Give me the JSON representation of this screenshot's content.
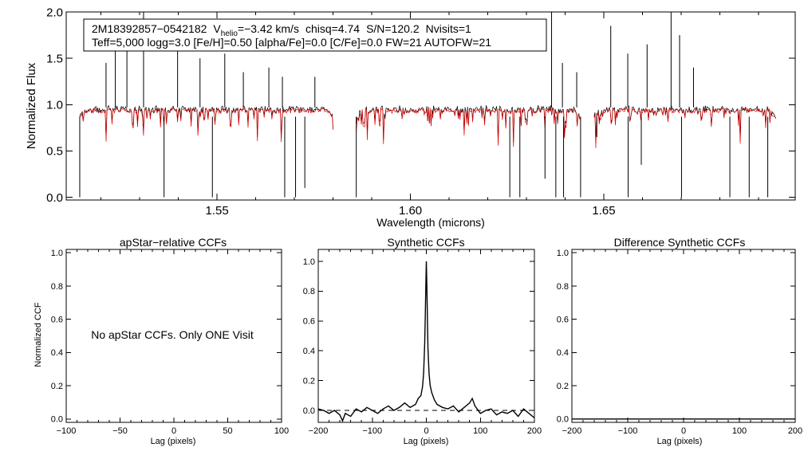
{
  "chart_data": [
    {
      "type": "line",
      "id": "spectrum",
      "header": {
        "star_id": "2M18392857−0542182",
        "vhelio_label": "V",
        "vhelio_sub": "helio",
        "vhelio_value": "=−3.42 km/s",
        "chisq": "chisq=4.74",
        "snr": "S/N=120.2",
        "nvisits": "Nvisits=1",
        "params": "Teff=5,000 logg=3.0 [Fe/H]=0.50 [alpha/Fe]=0.0 [C/Fe]=0.0 FW=21 AUTOFW=21"
      },
      "xlabel": "Wavelength (microns)",
      "ylabel": "Normalized Flux",
      "xlim": [
        1.511,
        1.6995
      ],
      "ylim": [
        -0.03,
        2.0
      ],
      "xticks": [
        1.55,
        1.6,
        1.65
      ],
      "xtick_labels": [
        "1.55",
        "1.60",
        "1.65"
      ],
      "yticks": [
        0.0,
        0.5,
        1.0,
        1.5,
        2.0
      ],
      "ytick_labels": [
        "0.0",
        "0.5",
        "1.0",
        "1.5",
        "2.0"
      ],
      "chips": [
        [
          1.5145,
          1.58
        ],
        [
          1.586,
          1.644
        ],
        [
          1.6475,
          1.6945
        ]
      ],
      "series": [
        {
          "name": "observed",
          "color": "#000000",
          "continuum": 0.97,
          "noise": 0.025
        },
        {
          "name": "model",
          "color": "#e00000",
          "continuum": 0.96
        }
      ],
      "spikes": [
        1.5213,
        1.5237,
        1.5267,
        1.531,
        1.5398,
        1.5456,
        1.552,
        1.5568,
        1.5634,
        1.5669,
        1.5753,
        1.6365,
        1.6393,
        1.643,
        1.6518,
        1.6562,
        1.6612,
        1.6674,
        1.6696,
        1.6732
      ],
      "spike_heights": [
        1.45,
        1.9,
        1.8,
        2.0,
        1.6,
        1.5,
        1.55,
        1.35,
        1.4,
        1.3,
        1.3,
        2.0,
        1.45,
        1.35,
        1.85,
        1.55,
        1.65,
        2.0,
        1.75,
        1.4
      ],
      "dips": [
        1.5145,
        1.5363,
        1.5488,
        1.5675,
        1.5703,
        1.5727,
        1.586,
        1.6257,
        1.6283,
        1.6348,
        1.6376,
        1.6396,
        1.644,
        1.6482,
        1.6563,
        1.6597,
        1.6701,
        1.6826,
        1.6876,
        1.6924
      ],
      "dip_depths": [
        0.0,
        0.0,
        0.0,
        0.0,
        0.0,
        0.1,
        0.0,
        0.0,
        0.0,
        0.2,
        0.0,
        0.0,
        0.0,
        0.65,
        0.0,
        0.35,
        0.0,
        0.0,
        0.0,
        0.0
      ]
    },
    {
      "type": "line",
      "id": "apstar_ccf",
      "title": "apStar−relative CCFs",
      "xlabel": "Lag (pixels)",
      "ylabel": "Normalized CCF",
      "xlim": [
        -100,
        100
      ],
      "ylim": [
        -0.02,
        1.02
      ],
      "xticks": [
        -100,
        -50,
        0,
        50,
        100
      ],
      "xtick_labels": [
        "−100",
        "−50",
        "0",
        "50",
        "100"
      ],
      "yticks": [
        0.0,
        0.2,
        0.4,
        0.6,
        0.8,
        1.0
      ],
      "ytick_labels": [
        "0.0",
        "0.2",
        "0.4",
        "0.6",
        "0.8",
        "1.0"
      ],
      "note": "No apStar CCFs.  Only ONE Visit",
      "series": []
    },
    {
      "type": "line",
      "id": "synthetic_ccf",
      "title": "Synthetic CCFs",
      "xlabel": "Lag (pixels)",
      "ylabel": "",
      "xlim": [
        -200,
        200
      ],
      "ylim": [
        -0.08,
        1.08
      ],
      "xticks": [
        -200,
        -100,
        0,
        100,
        200
      ],
      "xtick_labels": [
        "−200",
        "−100",
        "0",
        "100",
        "200"
      ],
      "yticks": [
        0.0,
        0.2,
        0.4,
        0.6,
        0.8,
        1.0
      ],
      "ytick_labels": [
        "0.0",
        "0.2",
        "0.4",
        "0.6",
        "0.8",
        "1.0"
      ],
      "zero_line": 0.0,
      "series": [
        {
          "name": "ccf",
          "color": "#000000",
          "x": [
            -200,
            -190,
            -180,
            -170,
            -160,
            -155,
            -150,
            -140,
            -130,
            -120,
            -110,
            -100,
            -90,
            -80,
            -70,
            -60,
            -50,
            -40,
            -30,
            -20,
            -15,
            -10,
            -7,
            -5,
            -3,
            -2,
            -1,
            0,
            1,
            2,
            3,
            5,
            7,
            10,
            15,
            20,
            30,
            40,
            50,
            60,
            70,
            80,
            85,
            90,
            100,
            110,
            120,
            130,
            140,
            150,
            160,
            170,
            180,
            190,
            200
          ],
          "y": [
            0.01,
            0.0,
            -0.02,
            0.0,
            -0.03,
            -0.07,
            -0.02,
            -0.04,
            0.01,
            -0.01,
            0.02,
            0.0,
            -0.02,
            0.01,
            0.03,
            0.0,
            0.02,
            0.05,
            0.02,
            0.04,
            0.08,
            0.1,
            0.16,
            0.25,
            0.45,
            0.62,
            0.82,
            1.0,
            0.83,
            0.62,
            0.42,
            0.25,
            0.17,
            0.12,
            0.07,
            0.04,
            0.02,
            0.01,
            0.03,
            -0.01,
            0.02,
            0.05,
            0.08,
            0.03,
            -0.02,
            0.0,
            0.01,
            -0.03,
            -0.01,
            -0.02,
            0.0,
            -0.04,
            0.01,
            -0.02,
            -0.05
          ]
        }
      ]
    },
    {
      "type": "line",
      "id": "difference_ccf",
      "title": "Difference Synthetic CCFs",
      "xlabel": "Lag (pixels)",
      "ylabel": "",
      "xlim": [
        -200,
        200
      ],
      "ylim": [
        -0.02,
        1.02
      ],
      "xticks": [
        -200,
        -100,
        0,
        100,
        200
      ],
      "xtick_labels": [
        "−200",
        "−100",
        "0",
        "100",
        "200"
      ],
      "yticks": [
        0.0,
        0.2,
        0.4,
        0.6,
        0.8,
        1.0
      ],
      "ytick_labels": [
        "0.0",
        "0.2",
        "0.4",
        "0.6",
        "0.8",
        "1.0"
      ],
      "series": [
        {
          "name": "difference",
          "color": "#000000",
          "x": [
            -200,
            200
          ],
          "y": [
            0.0,
            0.0
          ]
        }
      ]
    }
  ]
}
